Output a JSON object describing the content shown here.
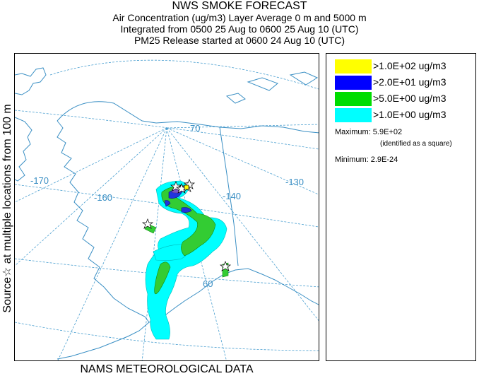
{
  "title": {
    "line1": "NWS SMOKE FORECAST",
    "line2": "Air Concentration (ug/m3) Layer Average    0 m and  5000 m",
    "line3": "Integrated from 0500 25 Aug to 0600 25 Aug 10 (UTC)",
    "line4": "PM25 Release started at 0600 24 Aug 10 (UTC)"
  },
  "side_label": "Source☆   at multiple locations     from   100 m",
  "footer": "NAMS METEOROLOGICAL DATA",
  "map": {
    "graticule_labels": {
      "lon_170": "-170",
      "lon_160": "-160",
      "lon_140": "-140",
      "lon_130": "-130",
      "lat_70": "70",
      "lat_60": "60"
    },
    "colors": {
      "land_outline": "#3a8fc4",
      "graticule": "#4a9fd0",
      "label": "#3a8fc4"
    }
  },
  "legend": {
    "items": [
      {
        "label": ">1.0E+02 ug/m3",
        "color": "#ffff00"
      },
      {
        "label": ">2.0E+01 ug/m3",
        "color": "#0000ff"
      },
      {
        "label": ">5.0E+00 ug/m3",
        "color": "#00dd00"
      },
      {
        "label": ">1.0E+00 ug/m3",
        "color": "#00ffff"
      }
    ],
    "maximum_label": "Maximum: 5.9E+02",
    "maximum_note": "(identified as a square)",
    "minimum_label": "Minimum: 2.9E-24"
  }
}
